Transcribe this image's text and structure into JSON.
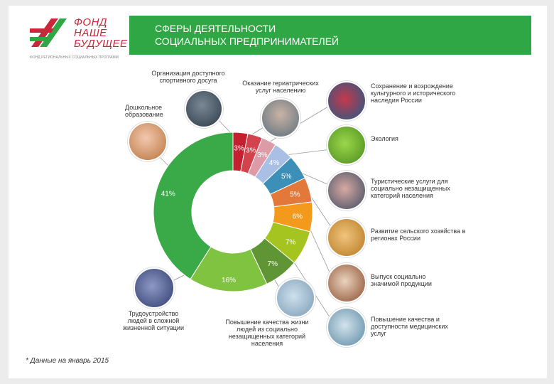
{
  "logo": {
    "line1": "ФОНД",
    "line2": "НАШЕ",
    "line3": "БУДУЩЕЕ",
    "subtitle": "ФОНД РЕГИОНАЛЬНЫХ СОЦИАЛЬНЫХ ПРОГРАММ"
  },
  "header": {
    "title_line1": "СФЕРЫ ДЕЯТЕЛЬНОСТИ",
    "title_line2": "СОЦИАЛЬНЫХ ПРЕДПРИНИМАТЕЛЕЙ"
  },
  "footnote": "* Данные на январь 2015",
  "colors": {
    "banner": "#2fa745",
    "logo_red": "#c8283a",
    "logo_green": "#2fa745"
  },
  "chart_data": {
    "type": "pie",
    "donut": true,
    "start": "top",
    "direction": "clockwise",
    "slices": [
      {
        "value": 3,
        "label": "3%",
        "color": "#c4202f",
        "category": "Организация доступного спортивного досуга"
      },
      {
        "value": 3,
        "label": "3%",
        "color": "#d3434e",
        "category": "Оказание гериатрических услуг населению"
      },
      {
        "value": 3,
        "label": "3%",
        "color": "#dd9aa7",
        "category": "Сохранение и возрождение культурного и исторического наследия России"
      },
      {
        "value": 4,
        "label": "4%",
        "color": "#a9bfe3",
        "category": "Экология"
      },
      {
        "value": 5,
        "label": "5%",
        "color": "#3c8fb6",
        "category": "Туристические услуги для социально незащищенных категорий населения"
      },
      {
        "value": 5,
        "label": "5%",
        "color": "#e2793a",
        "category": "Развитие сельского хозяйства в регионах России"
      },
      {
        "value": 6,
        "label": "6%",
        "color": "#f39a1c",
        "category": "Выпуск социально значимой продукции"
      },
      {
        "value": 7,
        "label": "7%",
        "color": "#a6c41f",
        "category": "Повышение качества и доступности медицинских услуг"
      },
      {
        "value": 7,
        "label": "7%",
        "color": "#5f9535",
        "category": "Повышение качества жизни людей из социально незащищенных категорий населения"
      },
      {
        "value": 16,
        "label": "16%",
        "color": "#80c341",
        "category": "Трудоустройство людей в сложной жизненной ситуации"
      },
      {
        "value": 41,
        "label": "41%",
        "color": "#3aaa48",
        "category": "Дошкольное образование"
      }
    ]
  },
  "labels": {
    "sport": "Организация доступного спортивного досуга",
    "geriatric": "Оказание гериатрических услуг населению",
    "preschool": "Дошкольное образование",
    "heritage": "Сохранение и возрождение культурного и исторического наследия России",
    "ecology": "Экология",
    "tourism": "Туристические услуги для социально незащищенных категорий населения",
    "agriculture": "Развитие сельского хозяйства в регионах России",
    "production": "Выпуск социально значимой продукции",
    "medical": "Повышение качества и доступности медицинских услуг",
    "employment": "Трудоустройство людей в сложной жизненной ситуации",
    "quality_life": "Повышение качества жизни людей из социально незащищенных категорий населения"
  }
}
